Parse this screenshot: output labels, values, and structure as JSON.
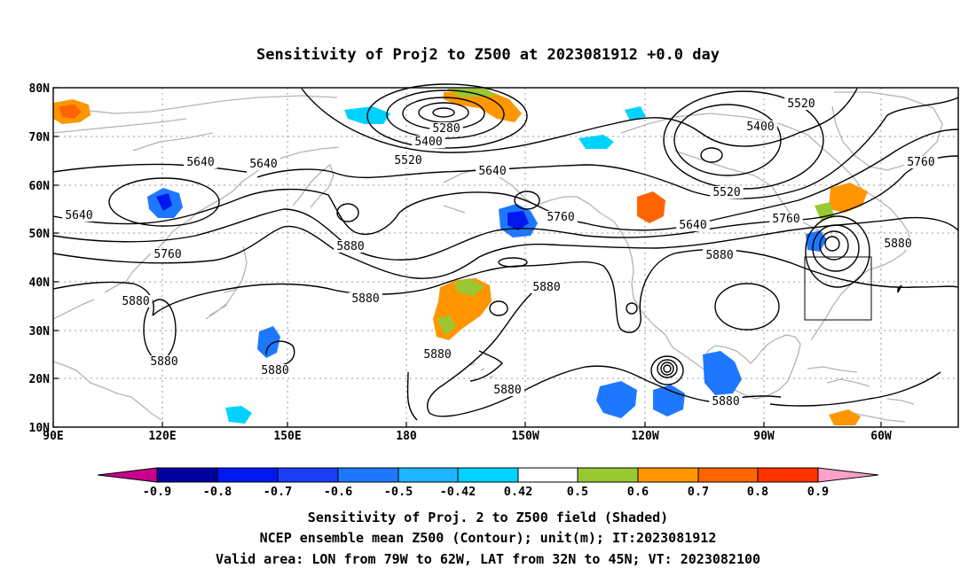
{
  "title": "Sensitivity of Proj2 to Z500 at 2023081912 +0.0 day",
  "map": {
    "lon_ticks": [
      "90E",
      "120E",
      "150E",
      "180",
      "150W",
      "120W",
      "90W",
      "60W"
    ],
    "lat_ticks": [
      "80N",
      "70N",
      "60N",
      "50N",
      "40N",
      "30N",
      "20N",
      "10N"
    ],
    "grid": "dotted",
    "valid_area_box": true
  },
  "colorbar": {
    "labels": [
      "-0.9",
      "-0.8",
      "-0.7",
      "-0.6",
      "-0.5",
      "-0.42",
      "0.42",
      "0.5",
      "0.6",
      "0.7",
      "0.8",
      "0.9"
    ],
    "colors": [
      "#c8008c",
      "#0000a0",
      "#0018f0",
      "#1a3cf5",
      "#1e78ff",
      "#1eb4ff",
      "#00d2ff",
      "#ffffff",
      "#9ac832",
      "#ff9600",
      "#ff6400",
      "#ff3200",
      "#ff0000",
      "#ffa0c8"
    ]
  },
  "contour_labels": [
    "5520",
    "5400",
    "5280",
    "5400",
    "5520",
    "5640",
    "5640",
    "5640",
    "5760",
    "5640",
    "5520",
    "5760",
    "5640",
    "5760",
    "5760",
    "5880",
    "5880",
    "5880",
    "5880",
    "5880",
    "5880",
    "5880",
    "5880",
    "5880",
    "5880",
    "5880"
  ],
  "captions": [
    "Sensitivity of Proj. 2 to Z500 field (Shaded)",
    "NCEP ensemble mean Z500 (Contour); unit(m); IT:2023081912",
    "Valid area: LON from 79W to 62W, LAT from 32N to 45N; VT: 2023082100"
  ]
}
